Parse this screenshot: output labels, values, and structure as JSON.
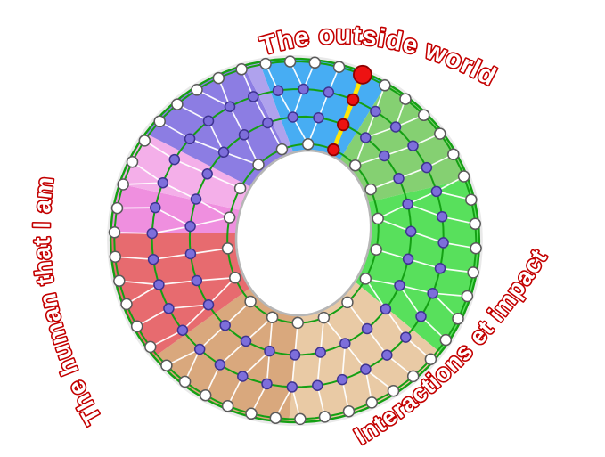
{
  "labels": {
    "top": "The outside world",
    "right": "Interactions et impact",
    "left": "The human that I am",
    "outline_color": "#C30000",
    "fill_color": "#FFFFFF"
  },
  "wheel": {
    "background": "#FFFFFF",
    "hole_fill": "#FFFFFF",
    "hole_rim_color": "#B6B6B6",
    "ring_line_color": "#14A014",
    "outer_edge_color": "#14A014",
    "outer_shadow_color": "#9A9A9A",
    "link_line_color": "#FFFFFF",
    "rings": [
      {
        "position": "inner",
        "node_count": 18,
        "node_fill": "#FFFFFF",
        "node_stroke": "#5A5A5A"
      },
      {
        "position": "ring-2",
        "node_count": 27,
        "node_fill": "#7D6EDB",
        "node_stroke": "#3E3390"
      },
      {
        "position": "ring-3",
        "node_count": 36,
        "node_fill": "#7D6EDB",
        "node_stroke": "#3E3390"
      },
      {
        "position": "outer",
        "node_count": 46,
        "node_fill": "#FFFFFF",
        "node_stroke": "#5A5A5A"
      }
    ],
    "sectors": [
      {
        "name": "blue-outside-world",
        "color": "#47ADF3",
        "start_deg": -21,
        "end_deg": 20
      },
      {
        "name": "green-sage",
        "color": "#85D072",
        "start_deg": 20,
        "end_deg": 60
      },
      {
        "name": "green-bright",
        "color": "#58E05C",
        "start_deg": 60,
        "end_deg": 118
      },
      {
        "name": "tan-light",
        "color": "#E9CAA5",
        "start_deg": 118,
        "end_deg": 172
      },
      {
        "name": "tan-dark",
        "color": "#D9A87D",
        "start_deg": 172,
        "end_deg": 220
      },
      {
        "name": "red-salmon",
        "color": "#E76B6F",
        "start_deg": 220,
        "end_deg": 262
      },
      {
        "name": "pink-bright",
        "color": "#EF8FDF",
        "start_deg": 262,
        "end_deg": 278
      },
      {
        "name": "pink-light",
        "color": "#F4AFE9",
        "start_deg": 278,
        "end_deg": 296
      },
      {
        "name": "purple-medium",
        "color": "#8C7DE3",
        "start_deg": 296,
        "end_deg": 334
      },
      {
        "name": "purple-light",
        "color": "#AFA2ED",
        "start_deg": 334,
        "end_deg": 339
      }
    ],
    "highlight": {
      "angle_deg": 12,
      "line_color": "#FFE607",
      "node_color": "#ED1212",
      "node_stroke": "#8F0000",
      "rings_crossed": 4,
      "outer_node_enlarged": true
    }
  }
}
